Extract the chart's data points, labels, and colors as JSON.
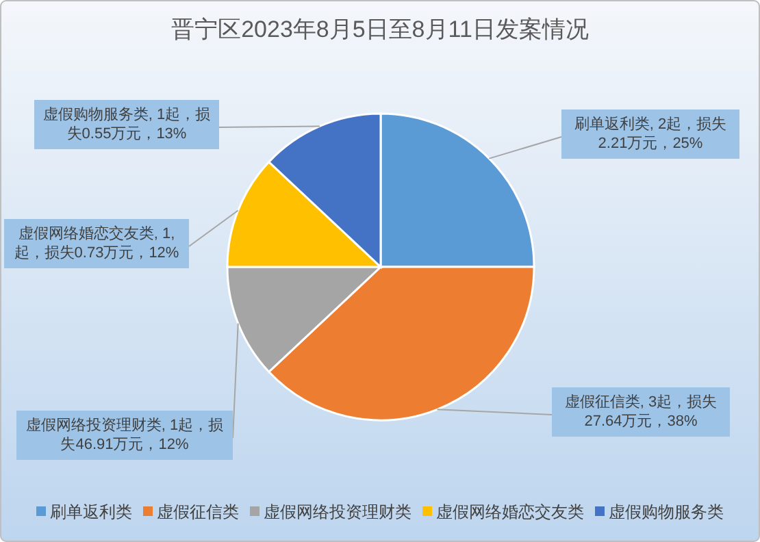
{
  "chart_data": {
    "type": "pie",
    "title": "晋宁区2023年8月5日至8月11日发案情况",
    "categories": [
      "刷单返利类",
      "虚假征信类",
      "虚假网络投资理财类",
      "虚假网络婚恋交友类",
      "虚假购物服务类"
    ],
    "values": [
      25,
      38,
      12,
      12,
      13
    ],
    "colors": [
      "#5b9bd5",
      "#ed7d31",
      "#a5a5a5",
      "#ffc000",
      "#4472c4"
    ],
    "value_labels": [
      "刷单返利类, 2起，损失2.21万元，25%",
      "虚假征信类, 3起，损失27.64万元，38%",
      "虚假网络投资理财类, 1起，损失46.91万元，12%",
      "虚假网络婚恋交友类, 1,起，损失0.73万元，12%",
      "虚假购物服务类, 1起，损失0.55万元，13%"
    ],
    "legend": "bottom"
  }
}
